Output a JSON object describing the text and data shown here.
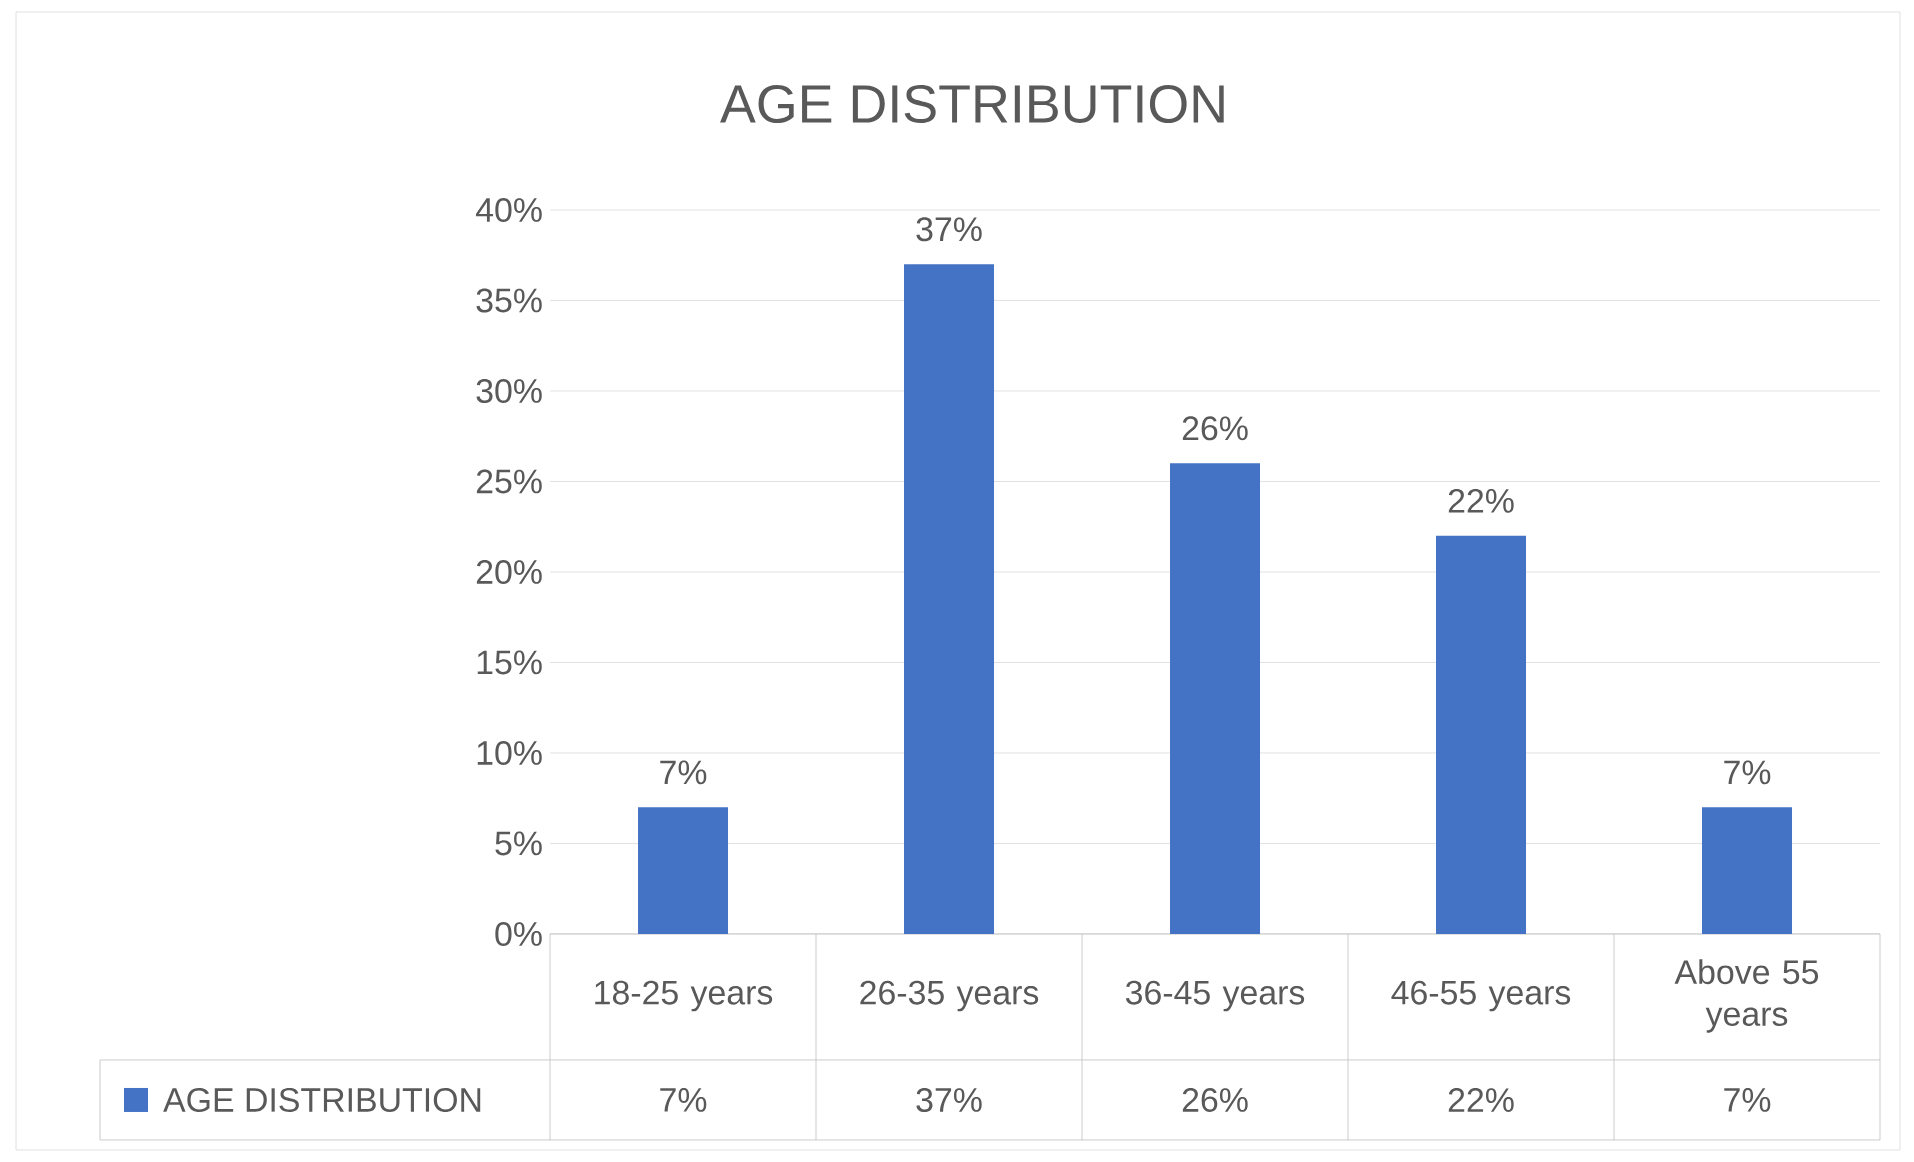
{
  "chart_data": {
    "type": "bar",
    "title": "AGE DISTRIBUTION",
    "categories": [
      "18-25 years",
      "26-35 years",
      "36-45 years",
      "46-55 years",
      "Above 55 years"
    ],
    "series": [
      {
        "name": "AGE DISTRIBUTION",
        "color": "#4472c4",
        "values": [
          7,
          37,
          26,
          22,
          7
        ],
        "value_labels": [
          "7%",
          "37%",
          "26%",
          "22%",
          "7%"
        ]
      }
    ],
    "ylim": [
      0,
      40
    ],
    "yticks": [
      {
        "value": 0,
        "label": "0%"
      },
      {
        "value": 5,
        "label": "5%"
      },
      {
        "value": 10,
        "label": "10%"
      },
      {
        "value": 15,
        "label": "15%"
      },
      {
        "value": 20,
        "label": "20%"
      },
      {
        "value": 25,
        "label": "25%"
      },
      {
        "value": 30,
        "label": "30%"
      },
      {
        "value": 35,
        "label": "35%"
      },
      {
        "value": 40,
        "label": "40%"
      }
    ],
    "grid": "y"
  }
}
